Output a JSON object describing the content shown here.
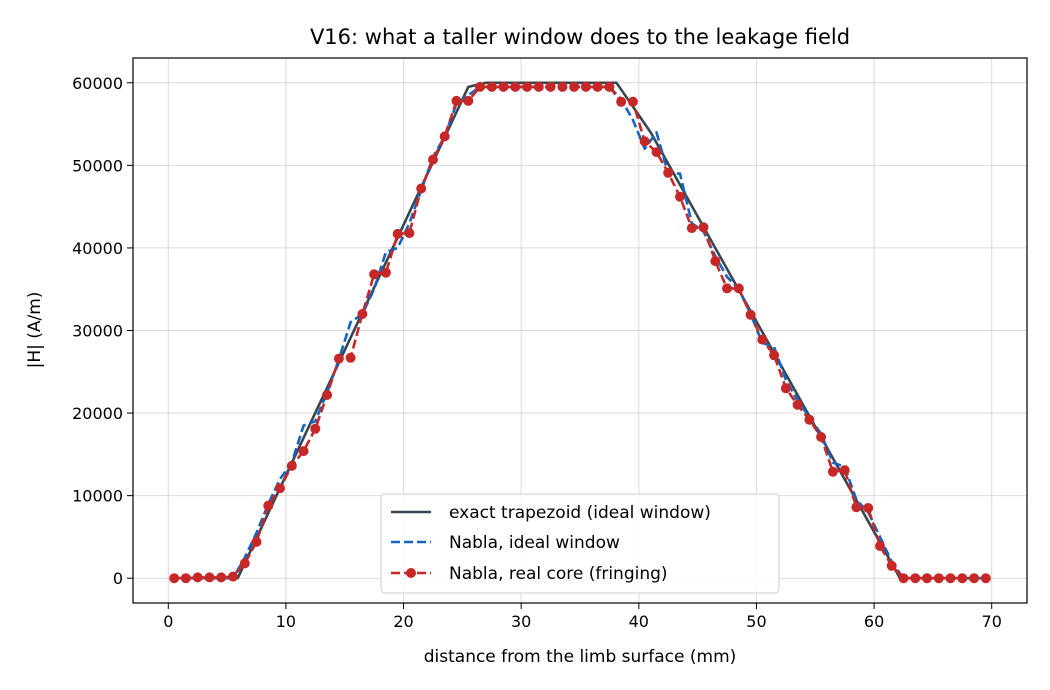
{
  "chart_data": {
    "type": "line",
    "title": "V16: what a taller window does to the leakage field",
    "xlabel": "distance from the limb surface (mm)",
    "ylabel": "|H| (A/m)",
    "xlim": [
      -3,
      73
    ],
    "ylim": [
      -3000,
      63000
    ],
    "xticks": [
      0,
      10,
      20,
      30,
      40,
      50,
      60,
      70
    ],
    "yticks": [
      0,
      10000,
      20000,
      30000,
      40000,
      50000,
      60000
    ],
    "grid": true,
    "legend_position": "lower center",
    "series": [
      {
        "name": "exact trapezoid (ideal window)",
        "color": "#37474f",
        "style": "solid",
        "marker": "none",
        "x": [
          0.5,
          5.9,
          25.5,
          27.0,
          37.5,
          38.1,
          41.0,
          62.2,
          69.5
        ],
        "y": [
          0,
          0,
          59500,
          60000,
          60000,
          60000,
          54000,
          0,
          0
        ]
      },
      {
        "name": "Nabla, ideal window",
        "color": "#1565c0",
        "style": "dashed",
        "marker": "none",
        "x": [
          0.5,
          5.5,
          6.5,
          7.5,
          8.5,
          9.5,
          10.5,
          11.5,
          12.5,
          13.5,
          14.5,
          15.5,
          16.5,
          17.5,
          18.5,
          19.5,
          20.5,
          21.5,
          22.5,
          23.5,
          24.5,
          25.5,
          26.5,
          27.5,
          28.5,
          29.5,
          30.5,
          31.5,
          32.5,
          33.5,
          34.5,
          35.5,
          36.5,
          37.5,
          38.5,
          39.5,
          40.5,
          41.5,
          42.5,
          43.5,
          44.5,
          45.5,
          46.5,
          47.5,
          48.5,
          49.5,
          50.5,
          51.5,
          52.5,
          53.5,
          54.5,
          55.5,
          56.5,
          57.5,
          58.5,
          59.5,
          60.5,
          61.5,
          62.5,
          69.5
        ],
        "y": [
          0,
          0,
          2500,
          5500,
          9000,
          12000,
          14000,
          18500,
          19000,
          22500,
          26500,
          31000,
          32000,
          35000,
          39500,
          40000,
          43000,
          47000,
          51000,
          53500,
          57500,
          58500,
          59500,
          59500,
          59500,
          59500,
          59500,
          59500,
          59500,
          59500,
          59500,
          59500,
          59500,
          59500,
          58000,
          55500,
          52000,
          54000,
          49000,
          49000,
          43000,
          42000,
          39000,
          36500,
          35000,
          32000,
          28500,
          28000,
          24000,
          21500,
          19500,
          17500,
          14000,
          13500,
          9500,
          8000,
          5000,
          2000,
          0,
          0
        ]
      },
      {
        "name": "Nabla, real core (fringing)",
        "color": "#c62828",
        "style": "dashed",
        "marker": "o",
        "x": [
          0.5,
          1.5,
          2.5,
          3.5,
          4.5,
          5.5,
          6.5,
          7.5,
          8.5,
          9.5,
          10.5,
          11.5,
          12.5,
          13.5,
          14.5,
          15.5,
          16.5,
          17.5,
          18.5,
          19.5,
          20.5,
          21.5,
          22.5,
          23.5,
          24.5,
          25.5,
          26.5,
          27.5,
          28.5,
          29.5,
          30.5,
          31.5,
          32.5,
          33.5,
          34.5,
          35.5,
          36.5,
          37.5,
          38.5,
          39.5,
          40.5,
          41.5,
          42.5,
          43.5,
          44.5,
          45.5,
          46.5,
          47.5,
          48.5,
          49.5,
          50.5,
          51.5,
          52.5,
          53.5,
          54.5,
          55.5,
          56.5,
          57.5,
          58.5,
          59.5,
          60.5,
          61.5,
          62.5,
          63.5,
          64.5,
          65.5,
          66.5,
          67.5,
          68.5,
          69.5
        ],
        "y": [
          0,
          0,
          100,
          100,
          100,
          200,
          1800,
          4400,
          8800,
          10900,
          13600,
          15400,
          18100,
          22200,
          26600,
          26700,
          32000,
          36800,
          37000,
          41700,
          41800,
          47200,
          50700,
          53500,
          57800,
          57800,
          59500,
          59500,
          59500,
          59500,
          59500,
          59500,
          59500,
          59500,
          59500,
          59500,
          59500,
          59500,
          57700,
          57700,
          52900,
          51600,
          49100,
          46200,
          42400,
          42500,
          38400,
          35100,
          35100,
          31900,
          28900,
          27000,
          23000,
          21000,
          19200,
          17100,
          12900,
          13100,
          8600,
          8500,
          3900,
          1500,
          0,
          0,
          0,
          0,
          0,
          0,
          0,
          0
        ]
      }
    ]
  }
}
